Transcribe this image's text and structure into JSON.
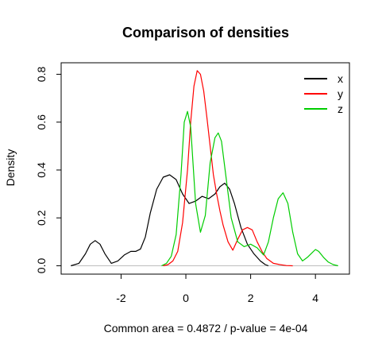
{
  "chart_data": {
    "type": "line",
    "title": "Comparison of densities",
    "xlabel": "Common area = 0.4872 / p-value = 4e-04",
    "ylabel": "Density",
    "xlim": [
      -3.85,
      5.05
    ],
    "ylim": [
      -0.035,
      0.848
    ],
    "x_ticks": [
      -2,
      0,
      2,
      4
    ],
    "x_tick_labels": [
      "-2",
      "0",
      "2",
      "4"
    ],
    "y_ticks": [
      0.0,
      0.2,
      0.4,
      0.6,
      0.8
    ],
    "y_tick_labels": [
      "0.0",
      "0.2",
      "0.4",
      "0.6",
      "0.8"
    ],
    "baseline": 0,
    "baseline_color": "#bebebe",
    "legend": {
      "position": "top-right",
      "entries": [
        {
          "label": "x",
          "color": "#000000"
        },
        {
          "label": "y",
          "color": "#ff0000"
        },
        {
          "label": "z",
          "color": "#00cd00"
        }
      ]
    },
    "series": [
      {
        "name": "x",
        "color": "#000000",
        "x": [
          -3.55,
          -3.3,
          -3.1,
          -2.95,
          -2.8,
          -2.65,
          -2.5,
          -2.3,
          -2.1,
          -1.9,
          -1.7,
          -1.55,
          -1.4,
          -1.25,
          -1.1,
          -0.9,
          -0.7,
          -0.5,
          -0.3,
          -0.1,
          0.1,
          0.3,
          0.5,
          0.7,
          0.9,
          1.05,
          1.2,
          1.35,
          1.5,
          1.7,
          1.9,
          2.1,
          2.3,
          2.45,
          2.55
        ],
        "values": [
          0.0,
          0.01,
          0.05,
          0.09,
          0.105,
          0.09,
          0.05,
          0.01,
          0.02,
          0.045,
          0.06,
          0.06,
          0.07,
          0.12,
          0.22,
          0.32,
          0.37,
          0.38,
          0.36,
          0.3,
          0.26,
          0.27,
          0.29,
          0.28,
          0.3,
          0.33,
          0.345,
          0.32,
          0.26,
          0.16,
          0.09,
          0.05,
          0.02,
          0.005,
          0.0
        ]
      },
      {
        "name": "y",
        "color": "#ff0000",
        "x": [
          -0.7,
          -0.55,
          -0.4,
          -0.25,
          -0.1,
          0.05,
          0.15,
          0.25,
          0.35,
          0.45,
          0.55,
          0.65,
          0.75,
          0.85,
          0.95,
          1.05,
          1.15,
          1.3,
          1.45,
          1.6,
          1.75,
          1.9,
          2.05,
          2.2,
          2.35,
          2.5,
          2.7,
          2.9,
          3.1,
          3.3
        ],
        "values": [
          0.0,
          0.005,
          0.02,
          0.06,
          0.18,
          0.4,
          0.6,
          0.75,
          0.815,
          0.8,
          0.73,
          0.62,
          0.5,
          0.38,
          0.3,
          0.23,
          0.17,
          0.1,
          0.065,
          0.11,
          0.15,
          0.16,
          0.15,
          0.1,
          0.06,
          0.03,
          0.01,
          0.005,
          0.001,
          0.0
        ]
      },
      {
        "name": "z",
        "color": "#00cd00",
        "x": [
          -0.75,
          -0.6,
          -0.45,
          -0.3,
          -0.15,
          -0.05,
          0.05,
          0.15,
          0.3,
          0.45,
          0.6,
          0.75,
          0.9,
          1.0,
          1.1,
          1.25,
          1.4,
          1.6,
          1.8,
          2.0,
          2.2,
          2.4,
          2.55,
          2.7,
          2.85,
          3.0,
          3.15,
          3.3,
          3.45,
          3.6,
          3.75,
          3.9,
          4.0,
          4.1,
          4.25,
          4.4,
          4.55,
          4.7
        ],
        "values": [
          0.0,
          0.01,
          0.04,
          0.13,
          0.38,
          0.6,
          0.645,
          0.58,
          0.26,
          0.14,
          0.21,
          0.43,
          0.535,
          0.555,
          0.52,
          0.36,
          0.2,
          0.1,
          0.08,
          0.09,
          0.075,
          0.045,
          0.1,
          0.2,
          0.28,
          0.305,
          0.26,
          0.14,
          0.05,
          0.02,
          0.035,
          0.055,
          0.068,
          0.06,
          0.035,
          0.015,
          0.005,
          0.0
        ]
      }
    ]
  }
}
